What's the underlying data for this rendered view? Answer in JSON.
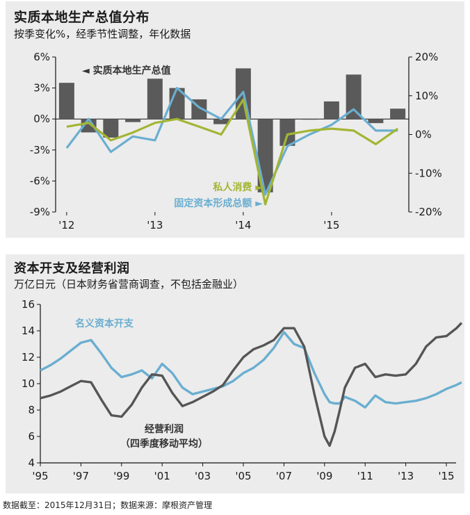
{
  "footer": "数据截至：2015年12月31日；数据来源：摩根资产管理",
  "chart_data": [
    {
      "type": "bar+line",
      "title": "实质本地生产总值分布",
      "subtitle": "按季变化%，经季节性调整，年化数据",
      "x_tick_labels": [
        "'12",
        "'13",
        "'14",
        "'15"
      ],
      "y_left": {
        "ticks": [
          "6%",
          "3%",
          "0%",
          "-3%",
          "-6%",
          "-9%"
        ],
        "range": [
          -9,
          6
        ]
      },
      "y_right": {
        "ticks": [
          "20%",
          "10%",
          "0%",
          "-10%",
          "-20%"
        ],
        "range": [
          -20,
          20
        ]
      },
      "quarters": [
        "2012Q1",
        "2012Q2",
        "2012Q3",
        "2012Q4",
        "2013Q1",
        "2013Q2",
        "2013Q3",
        "2013Q4",
        "2014Q1",
        "2014Q2",
        "2014Q3",
        "2014Q4",
        "2015Q1",
        "2015Q2",
        "2015Q3",
        "2015Q4"
      ],
      "series": [
        {
          "name": "实质本地生产总值",
          "axis": "left",
          "kind": "bar",
          "color": "#5a5a5a",
          "values": [
            3.5,
            -1.3,
            -1.8,
            -0.3,
            3.9,
            3.0,
            1.9,
            -0.5,
            4.9,
            -7.1,
            -2.6,
            0.0,
            1.7,
            4.3,
            -0.4,
            1.0
          ]
        },
        {
          "name": "私人消费",
          "axis": "right",
          "kind": "line",
          "color": "#a3b533",
          "values": [
            2.0,
            3.0,
            -1.5,
            0.5,
            3.0,
            4.0,
            2.0,
            0.0,
            9.0,
            -18.0,
            0.0,
            1.0,
            1.5,
            1.0,
            -2.5,
            1.5
          ]
        },
        {
          "name": "固定资本形成总额",
          "axis": "right",
          "kind": "line",
          "color": "#6aaed0",
          "values": [
            -3.5,
            4.0,
            -4.5,
            -0.5,
            -1.5,
            12.0,
            7.0,
            4.0,
            11.0,
            -15.5,
            -3.0,
            0.0,
            2.5,
            6.5,
            1.0,
            1.0
          ]
        }
      ]
    },
    {
      "type": "line",
      "title": "资本开支及经营利润",
      "subtitle": "万亿日元（日本财务省营商调查，不包括金融业）",
      "x_tick_labels": [
        "'95",
        "'97",
        "'99",
        "'01",
        "'03",
        "'05",
        "'07",
        "'09",
        "'11",
        "'13",
        "'15"
      ],
      "y_ticks": [
        "16",
        "14",
        "12",
        "10",
        "8",
        "6",
        "4"
      ],
      "ylim": [
        4,
        16
      ],
      "series": [
        {
          "name": "名义资本开支",
          "color": "#6aaed0",
          "x": [
            1995,
            1995.5,
            1996,
            1996.5,
            1997,
            1997.5,
            1998,
            1998.5,
            1999,
            1999.5,
            2000,
            2000.5,
            2001,
            2001.5,
            2002,
            2002.5,
            2003,
            2003.5,
            2004,
            2004.5,
            2005,
            2005.5,
            2006,
            2006.5,
            2007,
            2007.5,
            2008,
            2008.5,
            2009,
            2009.25,
            2009.5,
            2009.75,
            2010,
            2010.5,
            2011,
            2011.5,
            2012,
            2012.5,
            2013,
            2013.5,
            2014,
            2014.5,
            2015,
            2015.5,
            2015.75
          ],
          "y": [
            11.0,
            11.4,
            11.9,
            12.5,
            13.1,
            13.3,
            12.3,
            11.2,
            10.5,
            10.7,
            11.0,
            10.4,
            11.5,
            10.8,
            9.7,
            9.2,
            9.4,
            9.6,
            9.8,
            10.2,
            10.8,
            11.2,
            11.8,
            12.7,
            13.9,
            13.0,
            12.7,
            10.8,
            9.2,
            8.6,
            8.5,
            8.5,
            9.0,
            8.7,
            8.2,
            9.1,
            8.6,
            8.5,
            8.6,
            8.7,
            8.9,
            9.2,
            9.6,
            9.9,
            10.1
          ]
        },
        {
          "name": "经营利润",
          "note": "（四季度移动平均）",
          "color": "#555555",
          "x": [
            1995,
            1995.5,
            1996,
            1996.5,
            1997,
            1997.5,
            1998,
            1998.5,
            1999,
            1999.5,
            2000,
            2000.5,
            2001,
            2001.5,
            2002,
            2002.5,
            2003,
            2003.5,
            2004,
            2004.5,
            2005,
            2005.5,
            2006,
            2006.5,
            2007,
            2007.5,
            2008,
            2008.5,
            2009,
            2009.25,
            2009.5,
            2009.75,
            2010,
            2010.5,
            2011,
            2011.5,
            2012,
            2012.5,
            2013,
            2013.5,
            2014,
            2014.5,
            2015,
            2015.5,
            2015.75
          ],
          "y": [
            8.9,
            9.1,
            9.4,
            9.8,
            10.2,
            10.1,
            8.8,
            7.6,
            7.5,
            8.4,
            9.7,
            10.7,
            10.6,
            9.3,
            8.3,
            8.6,
            9.0,
            9.4,
            9.9,
            11.0,
            12.0,
            12.6,
            12.9,
            13.3,
            14.2,
            14.2,
            12.8,
            9.2,
            6.0,
            5.3,
            6.4,
            8.0,
            9.7,
            11.2,
            11.5,
            10.5,
            10.7,
            10.6,
            10.7,
            11.5,
            12.8,
            13.5,
            13.6,
            14.2,
            14.6
          ]
        }
      ]
    }
  ]
}
